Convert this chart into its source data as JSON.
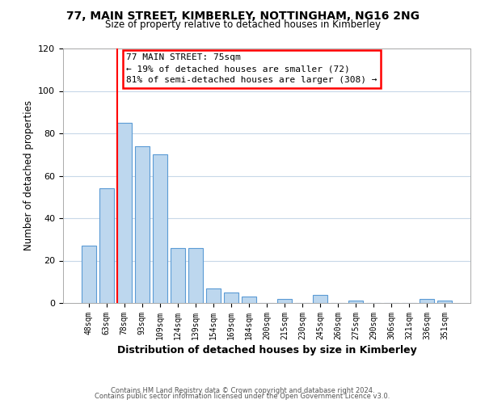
{
  "title": "77, MAIN STREET, KIMBERLEY, NOTTINGHAM, NG16 2NG",
  "subtitle": "Size of property relative to detached houses in Kimberley",
  "xlabel": "Distribution of detached houses by size in Kimberley",
  "ylabel": "Number of detached properties",
  "bar_labels": [
    "48sqm",
    "63sqm",
    "78sqm",
    "93sqm",
    "109sqm",
    "124sqm",
    "139sqm",
    "154sqm",
    "169sqm",
    "184sqm",
    "200sqm",
    "215sqm",
    "230sqm",
    "245sqm",
    "260sqm",
    "275sqm",
    "290sqm",
    "306sqm",
    "321sqm",
    "336sqm",
    "351sqm"
  ],
  "bar_values": [
    27,
    54,
    85,
    74,
    70,
    26,
    26,
    7,
    5,
    3,
    0,
    2,
    0,
    4,
    0,
    1,
    0,
    0,
    0,
    2,
    1
  ],
  "bar_color": "#bdd7ee",
  "bar_edge_color": "#5b9bd5",
  "ylim": [
    0,
    120
  ],
  "yticks": [
    0,
    20,
    40,
    60,
    80,
    100,
    120
  ],
  "property_line_x": 2,
  "property_line_label": "77 MAIN STREET: 75sqm",
  "annotation_line1": "← 19% of detached houses are smaller (72)",
  "annotation_line2": "81% of semi-detached houses are larger (308) →",
  "footer_line1": "Contains HM Land Registry data © Crown copyright and database right 2024.",
  "footer_line2": "Contains public sector information licensed under the Open Government Licence v3.0.",
  "background_color": "#ffffff",
  "grid_color": "#c8d8e8"
}
